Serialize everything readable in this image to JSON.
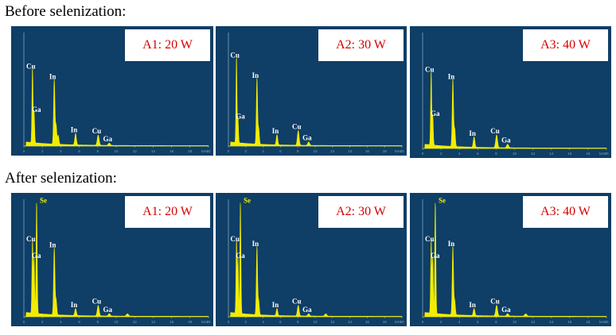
{
  "headings": {
    "before": "Before selenization:",
    "after": "After selenization:"
  },
  "colors": {
    "panel_background": "#0f3e66",
    "spectrum": "#f2ec00",
    "peak_label": "#ffffff",
    "se_label": "#f2ec00",
    "tag_text": "#d40000",
    "axis": "#7fa6c8"
  },
  "chart_data": [
    {
      "type": "line",
      "group": "Before selenization",
      "label": "A1: 20 W",
      "xlabel": "keV",
      "xlim": [
        0,
        20
      ],
      "x_ticks": [
        "0",
        "2",
        "4",
        "6",
        "8",
        "10",
        "12",
        "14",
        "16",
        "18",
        "20"
      ],
      "peaks": [
        {
          "element": "Cu",
          "energy_keV": 0.93,
          "relative_height": 0.66,
          "show_label": true
        },
        {
          "element": "Ga",
          "energy_keV": 1.1,
          "relative_height": 0.28,
          "show_label": true
        },
        {
          "element": "In",
          "energy_keV": 3.29,
          "relative_height": 0.57,
          "show_label": true
        },
        {
          "element": "In",
          "energy_keV": 3.49,
          "relative_height": 0.17,
          "show_label": false
        },
        {
          "element": "In",
          "energy_keV": 3.72,
          "relative_height": 0.08,
          "show_label": false
        },
        {
          "element": "In",
          "energy_keV": 5.6,
          "relative_height": 0.1,
          "show_label": true
        },
        {
          "element": "Cu",
          "energy_keV": 8.05,
          "relative_height": 0.09,
          "show_label": true
        },
        {
          "element": "Ga",
          "energy_keV": 9.25,
          "relative_height": 0.02,
          "show_label": true
        }
      ]
    },
    {
      "type": "line",
      "group": "Before selenization",
      "label": "A2: 30 W",
      "xlabel": "keV",
      "xlim": [
        0,
        20
      ],
      "x_ticks": [
        "0",
        "2",
        "4",
        "6",
        "8",
        "10",
        "12",
        "14",
        "16",
        "18",
        "20"
      ],
      "peaks": [
        {
          "element": "Cu",
          "energy_keV": 0.93,
          "relative_height": 0.76,
          "show_label": true
        },
        {
          "element": "Ga",
          "energy_keV": 1.1,
          "relative_height": 0.22,
          "show_label": true
        },
        {
          "element": "In",
          "energy_keV": 3.29,
          "relative_height": 0.58,
          "show_label": true
        },
        {
          "element": "In",
          "energy_keV": 3.49,
          "relative_height": 0.14,
          "show_label": false
        },
        {
          "element": "In",
          "energy_keV": 5.6,
          "relative_height": 0.09,
          "show_label": true
        },
        {
          "element": "Cu",
          "energy_keV": 8.05,
          "relative_height": 0.13,
          "show_label": true
        },
        {
          "element": "Ga",
          "energy_keV": 9.25,
          "relative_height": 0.03,
          "show_label": true
        }
      ]
    },
    {
      "type": "line",
      "group": "Before selenization",
      "label": "A3: 40 W",
      "xlabel": "keV",
      "xlim": [
        0,
        20
      ],
      "x_ticks": [
        "0",
        "2",
        "4",
        "6",
        "8",
        "10",
        "12",
        "14",
        "16",
        "18",
        "20"
      ],
      "peaks": [
        {
          "element": "Cu",
          "energy_keV": 0.93,
          "relative_height": 0.64,
          "show_label": true
        },
        {
          "element": "Ga",
          "energy_keV": 1.1,
          "relative_height": 0.26,
          "show_label": true
        },
        {
          "element": "In",
          "energy_keV": 3.29,
          "relative_height": 0.58,
          "show_label": true
        },
        {
          "element": "In",
          "energy_keV": 3.49,
          "relative_height": 0.15,
          "show_label": false
        },
        {
          "element": "In",
          "energy_keV": 5.6,
          "relative_height": 0.09,
          "show_label": true
        },
        {
          "element": "Cu",
          "energy_keV": 8.05,
          "relative_height": 0.11,
          "show_label": true
        },
        {
          "element": "Ga",
          "energy_keV": 9.25,
          "relative_height": 0.03,
          "show_label": true
        }
      ]
    },
    {
      "type": "line",
      "group": "After selenization",
      "label": "A1: 20 W",
      "xlabel": "keV",
      "xlim": [
        0,
        20
      ],
      "x_ticks": [
        "0",
        "2",
        "4",
        "6",
        "8",
        "10",
        "12",
        "14",
        "16",
        "18",
        "20"
      ],
      "peaks": [
        {
          "element": "Cu",
          "energy_keV": 0.93,
          "relative_height": 0.62,
          "show_label": true
        },
        {
          "element": "Ga",
          "energy_keV": 1.1,
          "relative_height": 0.48,
          "show_label": true
        },
        {
          "element": "Se",
          "energy_keV": 1.38,
          "relative_height": 0.95,
          "show_label": true
        },
        {
          "element": "In",
          "energy_keV": 3.29,
          "relative_height": 0.57,
          "show_label": true
        },
        {
          "element": "In",
          "energy_keV": 3.49,
          "relative_height": 0.13,
          "show_label": false
        },
        {
          "element": "In",
          "energy_keV": 5.6,
          "relative_height": 0.06,
          "show_label": true
        },
        {
          "element": "Cu",
          "energy_keV": 8.05,
          "relative_height": 0.09,
          "show_label": true
        },
        {
          "element": "Ga",
          "energy_keV": 9.25,
          "relative_height": 0.02,
          "show_label": true
        },
        {
          "element": "Se",
          "energy_keV": 11.22,
          "relative_height": 0.02,
          "show_label": false
        }
      ]
    },
    {
      "type": "line",
      "group": "After selenization",
      "label": "A2: 30 W",
      "xlabel": "keV",
      "xlim": [
        0,
        20
      ],
      "x_ticks": [
        "0",
        "2",
        "4",
        "6",
        "8",
        "10",
        "12",
        "14",
        "16",
        "18",
        "20"
      ],
      "peaks": [
        {
          "element": "Cu",
          "energy_keV": 0.93,
          "relative_height": 0.62,
          "show_label": true
        },
        {
          "element": "Ga",
          "energy_keV": 1.1,
          "relative_height": 0.48,
          "show_label": true
        },
        {
          "element": "Se",
          "energy_keV": 1.38,
          "relative_height": 0.95,
          "show_label": true
        },
        {
          "element": "In",
          "energy_keV": 3.29,
          "relative_height": 0.58,
          "show_label": true
        },
        {
          "element": "In",
          "energy_keV": 3.49,
          "relative_height": 0.12,
          "show_label": false
        },
        {
          "element": "In",
          "energy_keV": 5.6,
          "relative_height": 0.06,
          "show_label": true
        },
        {
          "element": "Cu",
          "energy_keV": 8.05,
          "relative_height": 0.09,
          "show_label": true
        },
        {
          "element": "Ga",
          "energy_keV": 9.25,
          "relative_height": 0.02,
          "show_label": true
        },
        {
          "element": "Se",
          "energy_keV": 11.22,
          "relative_height": 0.02,
          "show_label": false
        }
      ]
    },
    {
      "type": "line",
      "group": "After selenization",
      "label": "A3: 40 W",
      "xlabel": "keV",
      "xlim": [
        0,
        20
      ],
      "x_ticks": [
        "0",
        "2",
        "4",
        "6",
        "8",
        "10",
        "12",
        "14",
        "16",
        "18",
        "20"
      ],
      "peaks": [
        {
          "element": "Cu",
          "energy_keV": 0.93,
          "relative_height": 0.62,
          "show_label": true
        },
        {
          "element": "Ga",
          "energy_keV": 1.1,
          "relative_height": 0.48,
          "show_label": true
        },
        {
          "element": "Se",
          "energy_keV": 1.38,
          "relative_height": 0.95,
          "show_label": true
        },
        {
          "element": "In",
          "energy_keV": 3.29,
          "relative_height": 0.58,
          "show_label": true
        },
        {
          "element": "In",
          "energy_keV": 3.49,
          "relative_height": 0.12,
          "show_label": false
        },
        {
          "element": "In",
          "energy_keV": 5.6,
          "relative_height": 0.06,
          "show_label": true
        },
        {
          "element": "Cu",
          "energy_keV": 8.05,
          "relative_height": 0.09,
          "show_label": true
        },
        {
          "element": "Ga",
          "energy_keV": 9.25,
          "relative_height": 0.02,
          "show_label": true
        },
        {
          "element": "Se",
          "energy_keV": 11.22,
          "relative_height": 0.02,
          "show_label": false
        }
      ]
    }
  ]
}
